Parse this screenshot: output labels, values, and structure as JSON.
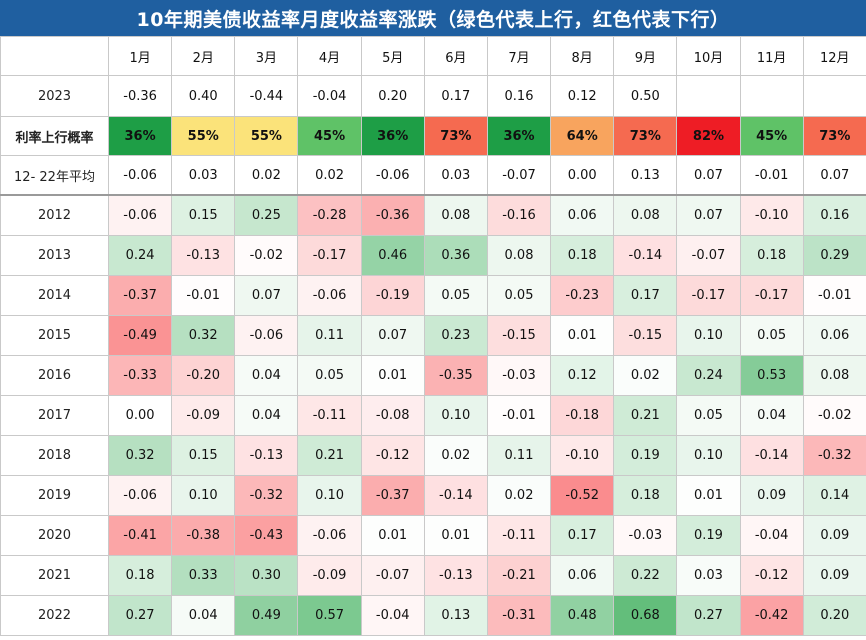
{
  "title": "10年期美债收益率月度收益率涨跌（绿色代表上行，红色代表下行）",
  "chart_data": {
    "type": "heatmap",
    "title": "10年期美债收益率月度收益率涨跌（绿色代表上行，红色代表下行）",
    "columns": [
      "1月",
      "2月",
      "3月",
      "4月",
      "5月",
      "6月",
      "7月",
      "8月",
      "9月",
      "10月",
      "11月",
      "12月"
    ],
    "row_2023": {
      "label": "2023",
      "values": [
        "-0.36",
        "0.40",
        "-0.44",
        "-0.04",
        "0.20",
        "0.17",
        "0.16",
        "0.12",
        "0.50",
        "",
        "",
        ""
      ]
    },
    "probability": {
      "label": "利率上行概率",
      "values": [
        "36%",
        "55%",
        "55%",
        "45%",
        "36%",
        "73%",
        "36%",
        "64%",
        "73%",
        "82%",
        "45%",
        "73%"
      ],
      "colors": [
        "#1e9e46",
        "#fbe37a",
        "#fbe37a",
        "#5fc267",
        "#1e9e46",
        "#f56a50",
        "#1e9e46",
        "#f8a45e",
        "#f56a50",
        "#ee1d25",
        "#5fc267",
        "#f56a50"
      ]
    },
    "average": {
      "label": "12- 22年平均",
      "values": [
        "-0.06",
        "0.03",
        "0.02",
        "0.02",
        "-0.06",
        "0.03",
        "-0.07",
        "0.00",
        "0.13",
        "0.07",
        "-0.01",
        "0.07"
      ]
    },
    "years": [
      {
        "label": "2012",
        "values": [
          "-0.06",
          "0.15",
          "0.25",
          "-0.28",
          "-0.36",
          "0.08",
          "-0.16",
          "0.06",
          "0.08",
          "0.07",
          "-0.10",
          "0.16"
        ]
      },
      {
        "label": "2013",
        "values": [
          "0.24",
          "-0.13",
          "-0.02",
          "-0.17",
          "0.46",
          "0.36",
          "0.08",
          "0.18",
          "-0.14",
          "-0.07",
          "0.18",
          "0.29"
        ]
      },
      {
        "label": "2014",
        "values": [
          "-0.37",
          "-0.01",
          "0.07",
          "-0.06",
          "-0.19",
          "0.05",
          "0.05",
          "-0.23",
          "0.17",
          "-0.17",
          "-0.17",
          "-0.01"
        ]
      },
      {
        "label": "2015",
        "values": [
          "-0.49",
          "0.32",
          "-0.06",
          "0.11",
          "0.07",
          "0.23",
          "-0.15",
          "0.01",
          "-0.15",
          "0.10",
          "0.05",
          "0.06"
        ]
      },
      {
        "label": "2016",
        "values": [
          "-0.33",
          "-0.20",
          "0.04",
          "0.05",
          "0.01",
          "-0.35",
          "-0.03",
          "0.12",
          "0.02",
          "0.24",
          "0.53",
          "0.08"
        ]
      },
      {
        "label": "2017",
        "values": [
          "0.00",
          "-0.09",
          "0.04",
          "-0.11",
          "-0.08",
          "0.10",
          "-0.01",
          "-0.18",
          "0.21",
          "0.05",
          "0.04",
          "-0.02"
        ]
      },
      {
        "label": "2018",
        "values": [
          "0.32",
          "0.15",
          "-0.13",
          "0.21",
          "-0.12",
          "0.02",
          "0.11",
          "-0.10",
          "0.19",
          "0.10",
          "-0.14",
          "-0.32"
        ]
      },
      {
        "label": "2019",
        "values": [
          "-0.06",
          "0.10",
          "-0.32",
          "0.10",
          "-0.37",
          "-0.14",
          "0.02",
          "-0.52",
          "0.18",
          "0.01",
          "0.09",
          "0.14"
        ]
      },
      {
        "label": "2020",
        "values": [
          "-0.41",
          "-0.38",
          "-0.43",
          "-0.06",
          "0.01",
          "0.01",
          "-0.11",
          "0.17",
          "-0.03",
          "0.19",
          "-0.04",
          "0.09"
        ]
      },
      {
        "label": "2021",
        "values": [
          "0.18",
          "0.33",
          "0.30",
          "-0.09",
          "-0.07",
          "-0.13",
          "-0.21",
          "0.06",
          "0.22",
          "0.03",
          "-0.12",
          "0.09"
        ]
      },
      {
        "label": "2022",
        "values": [
          "0.27",
          "0.04",
          "0.49",
          "0.57",
          "-0.04",
          "0.13",
          "-0.31",
          "0.48",
          "0.68",
          "0.27",
          "-0.42",
          "0.20"
        ]
      }
    ],
    "color_scale": {
      "positive": "#63be7b",
      "neutral": "#ffffff",
      "negative": "#f8696b"
    }
  }
}
